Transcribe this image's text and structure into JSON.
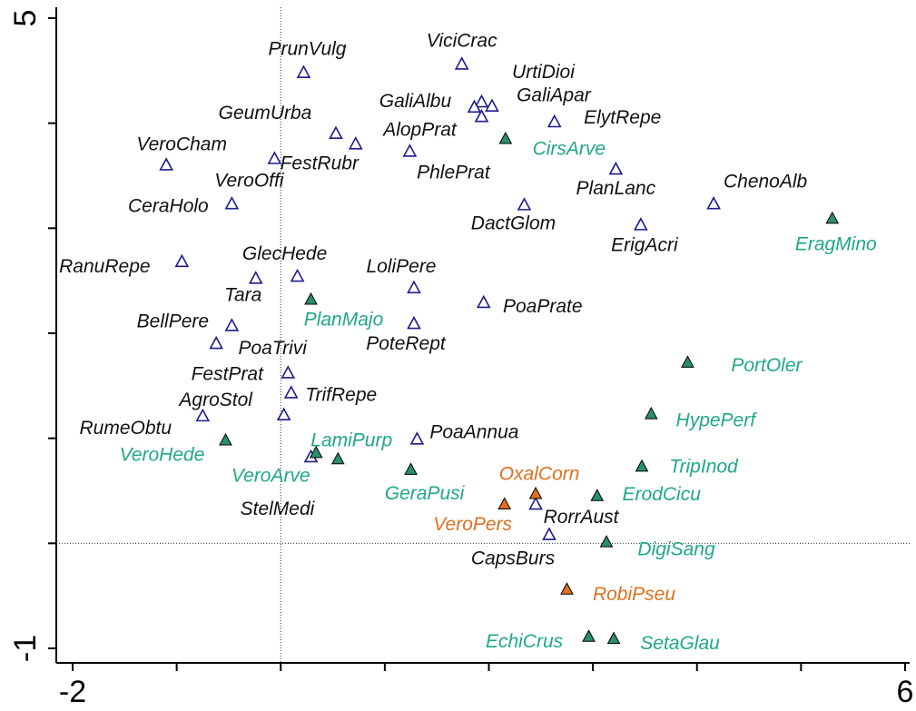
{
  "chart_data": {
    "type": "scatter",
    "xlim": [
      -2.0,
      6.0
    ],
    "ylim": [
      -1.0,
      5.0
    ],
    "xticks": [
      -2,
      6
    ],
    "yticks": [
      -1,
      5
    ],
    "xminor_ticks": [
      -1,
      0,
      1,
      2,
      3,
      4,
      5
    ],
    "yminor_ticks": [
      0,
      1,
      2,
      3,
      4
    ],
    "zero_lines": true,
    "series": [
      {
        "marker": "open-triangle",
        "color": "#1c1c8c",
        "label_color": "#111111",
        "labels": [
          "PrunVulg",
          "ViciCrac",
          "UrtiDioi",
          "GaliAlbu",
          "GaliApar",
          "AlopPrat",
          "GeumUrba",
          "FestRubr",
          "PhlePrat",
          "ElytRepe",
          "VeroCham",
          "VeroOffi",
          "PlanLanc",
          "ChenoAlb",
          "CeraHolo",
          "DactGlom",
          "ErigAcri",
          "RanuRepe",
          "GlecHede",
          "Tara",
          "LoliPere",
          "PoaPrate",
          "BellPere",
          "PoteRept",
          "PoaTrivi",
          "FestPrat",
          "TrifRepe",
          "AgroStol",
          "RumeObtu",
          "PoaAnnua",
          "StelMedi",
          "RorrAust",
          "CapsBurs"
        ],
        "x": [
          0.22,
          1.74,
          1.93,
          1.86,
          2.03,
          1.93,
          0.53,
          0.72,
          1.24,
          2.63,
          -1.1,
          -0.06,
          3.22,
          4.16,
          -0.47,
          2.34,
          3.46,
          -0.95,
          0.16,
          -0.24,
          1.28,
          1.95,
          -0.47,
          1.28,
          -0.62,
          0.07,
          0.1,
          0.03,
          -0.75,
          1.31,
          0.29,
          2.45,
          2.58
        ],
        "values": [
          4.48,
          4.56,
          4.2,
          4.15,
          4.16,
          4.06,
          3.9,
          3.8,
          3.73,
          4.01,
          3.6,
          3.66,
          3.56,
          3.23,
          3.23,
          3.22,
          3.03,
          2.68,
          2.54,
          2.52,
          2.43,
          2.29,
          2.07,
          2.09,
          1.9,
          1.62,
          1.43,
          1.22,
          1.21,
          0.99,
          0.82,
          0.37,
          0.08
        ]
      },
      {
        "marker": "filled-triangle",
        "color": "#2a8f6e",
        "label_color": "#1fa887",
        "labels": [
          "CirsArve",
          "EragMino",
          "PlanMajo",
          "PortOler",
          "HypePerf",
          "VeroHede",
          "LamiPurp",
          "VeroArve",
          "TripInod",
          "GeraPusi",
          "ErodCicu",
          "DigiSang",
          "EchiCrus",
          "SetaGlau"
        ],
        "x": [
          2.16,
          5.3,
          0.29,
          3.91,
          3.56,
          -0.53,
          0.34,
          0.55,
          3.47,
          1.25,
          3.04,
          3.13,
          2.96,
          3.2
        ],
        "values": [
          3.85,
          3.09,
          2.32,
          1.72,
          1.23,
          0.98,
          0.86,
          0.8,
          0.73,
          0.7,
          0.45,
          0.01,
          -0.89,
          -0.91
        ]
      },
      {
        "marker": "filled-triangle",
        "color": "#e0701e",
        "label_color": "#e0701e",
        "labels": [
          "OxalCorn",
          "VeroPers",
          "RobiPseu"
        ],
        "x": [
          2.45,
          2.15,
          2.75
        ],
        "values": [
          0.47,
          0.37,
          -0.44
        ]
      }
    ]
  }
}
